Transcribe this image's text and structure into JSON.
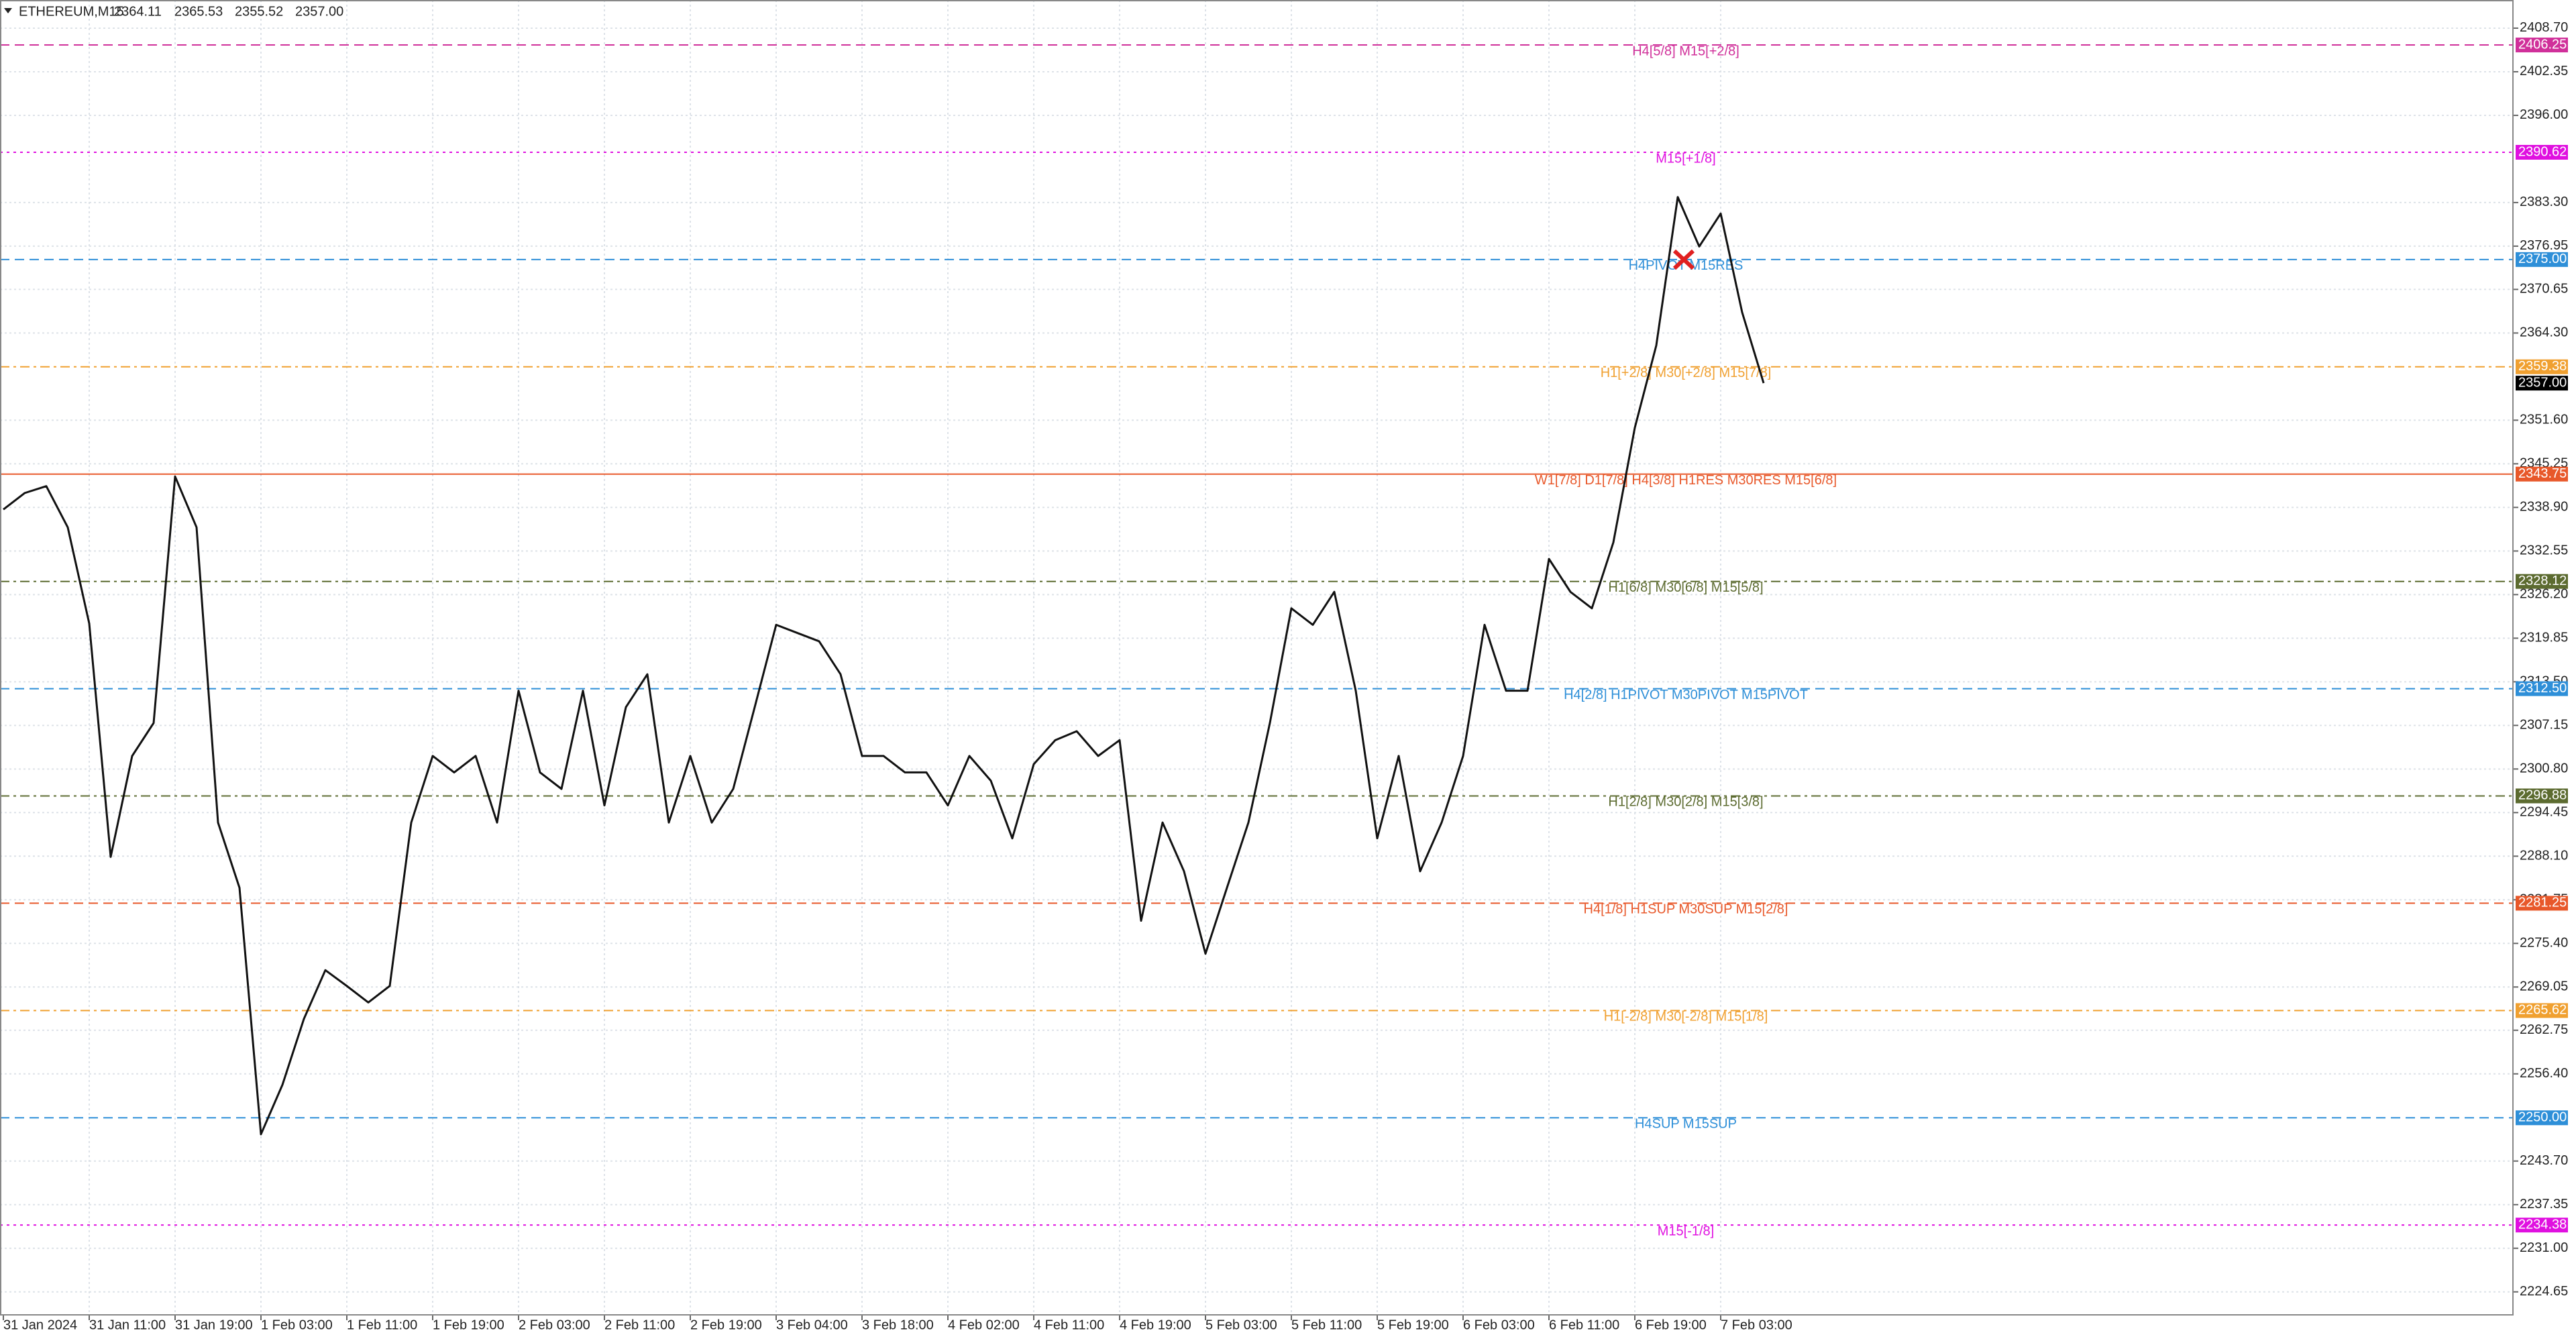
{
  "chart_data": {
    "type": "line",
    "title": "ETHEREUM,M15",
    "ohlc": [
      {
        "value": 2364.11,
        "label": "2364.11"
      },
      {
        "value": 2365.53,
        "label": "2365.53"
      },
      {
        "value": 2355.52,
        "label": "2355.52"
      },
      {
        "value": 2357.0,
        "label": "2357.00"
      }
    ],
    "categories": [
      "31 Jan 2024",
      null,
      null,
      null,
      "31 Jan 11:00",
      null,
      null,
      null,
      "31 Jan 19:00",
      null,
      null,
      null,
      "1 Feb 03:00",
      null,
      null,
      null,
      "1 Feb 11:00",
      null,
      null,
      null,
      "1 Feb 19:00",
      null,
      null,
      null,
      "2 Feb 03:00",
      null,
      null,
      null,
      "2 Feb 11:00",
      null,
      null,
      null,
      "2 Feb 19:00",
      null,
      null,
      null,
      "3 Feb 04:00",
      null,
      null,
      null,
      "3 Feb 18:00",
      null,
      null,
      null,
      "4 Feb 02:00",
      null,
      null,
      null,
      "4 Feb 11:00",
      null,
      null,
      null,
      "4 Feb 19:00",
      null,
      null,
      null,
      "5 Feb 03:00",
      null,
      null,
      null,
      "5 Feb 11:00",
      null,
      null,
      null,
      "5 Feb 19:00",
      null,
      null,
      null,
      "6 Feb 03:00",
      null,
      null,
      null,
      "6 Feb 11:00",
      null,
      null,
      null,
      "6 Feb 19:00",
      null,
      null,
      null,
      "7 Feb 03:00",
      null,
      null
    ],
    "series": [
      {
        "name": "ETHEREUM,M15",
        "color": "#111111",
        "values": [
          2338.6,
          2341,
          2342,
          2336,
          2322,
          2288,
          2302.7,
          2307.5,
          2343.4,
          2336,
          2293,
          2283.5,
          2247.6,
          2254.8,
          2264.4,
          2271.5,
          2269.2,
          2266.8,
          2269.2,
          2293,
          2302.7,
          2300.3,
          2302.7,
          2293,
          2312.2,
          2300.3,
          2297.9,
          2312.2,
          2295.5,
          2309.8,
          2314.6,
          2293,
          2302.7,
          2293,
          2297.9,
          2309.8,
          2321.8,
          2320.6,
          2319.4,
          2314.6,
          2302.7,
          2302.7,
          2300.3,
          2300.3,
          2295.5,
          2302.7,
          2299.1,
          2290.7,
          2301.5,
          2305,
          2306.3,
          2302.7,
          2305,
          2278.7,
          2293,
          2285.9,
          2273.9,
          2283.5,
          2293,
          2307.5,
          2324.2,
          2321.8,
          2326.6,
          2312.2,
          2290.7,
          2302.7,
          2285.9,
          2293,
          2302.7,
          2321.8,
          2312.2,
          2312.2,
          2331.4,
          2326.6,
          2324.2,
          2333.8,
          2350.5,
          2362.5,
          2384.1,
          2376.9,
          2381.7,
          2367.3,
          2357.0
        ]
      }
    ],
    "ylim": [
      2221.3,
      2412.8
    ],
    "yticks": [
      {
        "value": 2408.7,
        "label": "2408.70"
      },
      {
        "value": 2402.35,
        "label": "2402.35"
      },
      {
        "value": 2396.0,
        "label": "2396.00"
      },
      {
        "value": 2383.3,
        "label": "2383.30"
      },
      {
        "value": 2376.95,
        "label": "2376.95"
      },
      {
        "value": 2370.65,
        "label": "2370.65"
      },
      {
        "value": 2364.3,
        "label": "2364.30"
      },
      {
        "value": 2351.6,
        "label": "2351.60"
      },
      {
        "value": 2345.25,
        "label": "2345.25"
      },
      {
        "value": 2338.9,
        "label": "2338.90"
      },
      {
        "value": 2332.55,
        "label": "2332.55"
      },
      {
        "value": 2326.2,
        "label": "2326.20"
      },
      {
        "value": 2319.85,
        "label": "2319.85"
      },
      {
        "value": 2313.5,
        "label": "2313.50"
      },
      {
        "value": 2307.15,
        "label": "2307.15"
      },
      {
        "value": 2300.8,
        "label": "2300.80"
      },
      {
        "value": 2294.45,
        "label": "2294.45"
      },
      {
        "value": 2288.1,
        "label": "2288.10"
      },
      {
        "value": 2281.75,
        "label": "2281.75"
      },
      {
        "value": 2275.4,
        "label": "2275.40"
      },
      {
        "value": 2269.05,
        "label": "2269.05"
      },
      {
        "value": 2262.75,
        "label": "2262.75"
      },
      {
        "value": 2256.4,
        "label": "2256.40"
      },
      {
        "value": 2243.7,
        "label": "2243.70"
      },
      {
        "value": 2237.35,
        "label": "2237.35"
      },
      {
        "value": 2231.0,
        "label": "2231.00"
      },
      {
        "value": 2224.65,
        "label": "2224.65"
      }
    ],
    "grid": true,
    "levels": [
      {
        "value": 2406.25,
        "label": "2406.25",
        "text": "H4[5/8] M15[+2/8]",
        "color": "#d0309a",
        "style": "dashed"
      },
      {
        "value": 2390.62,
        "label": "2390.62",
        "text": "M15[+1/8]",
        "color": "#e010e0",
        "style": "dotted"
      },
      {
        "value": 2375.0,
        "label": "2375.00",
        "text": "H4PIVOT M15RES",
        "color": "#2e8fd8",
        "style": "dashed"
      },
      {
        "value": 2359.38,
        "label": "2359.38",
        "text": "H1[+2/8] M30[+2/8] M15[7/8]",
        "color": "#f0a030",
        "style": "dashdot"
      },
      {
        "value": 2343.75,
        "label": "2343.75",
        "text": "W1[7/8] D1[7/8] H4[3/8] H1RES M30RES M15[6/8]",
        "color": "#e8582a",
        "style": "solid"
      },
      {
        "value": 2328.12,
        "label": "2328.12",
        "text": "H1[6/8] M30[6/8] M15[5/8]",
        "color": "#5c6b30",
        "style": "dashdot"
      },
      {
        "value": 2312.5,
        "label": "2312.50",
        "text": "H4[2/8] H1PIVOT M30PIVOT M15PIVOT",
        "color": "#2e8fd8",
        "style": "dashed"
      },
      {
        "value": 2296.88,
        "label": "2296.88",
        "text": "H1[2/8] M30[2/8] M15[3/8]",
        "color": "#5c6b30",
        "style": "dashdot"
      },
      {
        "value": 2281.25,
        "label": "2281.25",
        "text": "H4[1/8] H1SUP M30SUP M15[2/8]",
        "color": "#e8582a",
        "style": "dashed"
      },
      {
        "value": 2265.62,
        "label": "2265.62",
        "text": "H1[-2/8] M30[-2/8] M15[1/8]",
        "color": "#f0a030",
        "style": "dashdot"
      },
      {
        "value": 2250.0,
        "label": "2250.00",
        "text": "H4SUP M15SUP",
        "color": "#2e8fd8",
        "style": "dashed"
      },
      {
        "value": 2234.38,
        "label": "2234.38",
        "text": "M15[-1/8]",
        "color": "#e010e0",
        "style": "dotted"
      }
    ],
    "current_price": {
      "value": 2357.0,
      "label": "2357.00"
    }
  }
}
